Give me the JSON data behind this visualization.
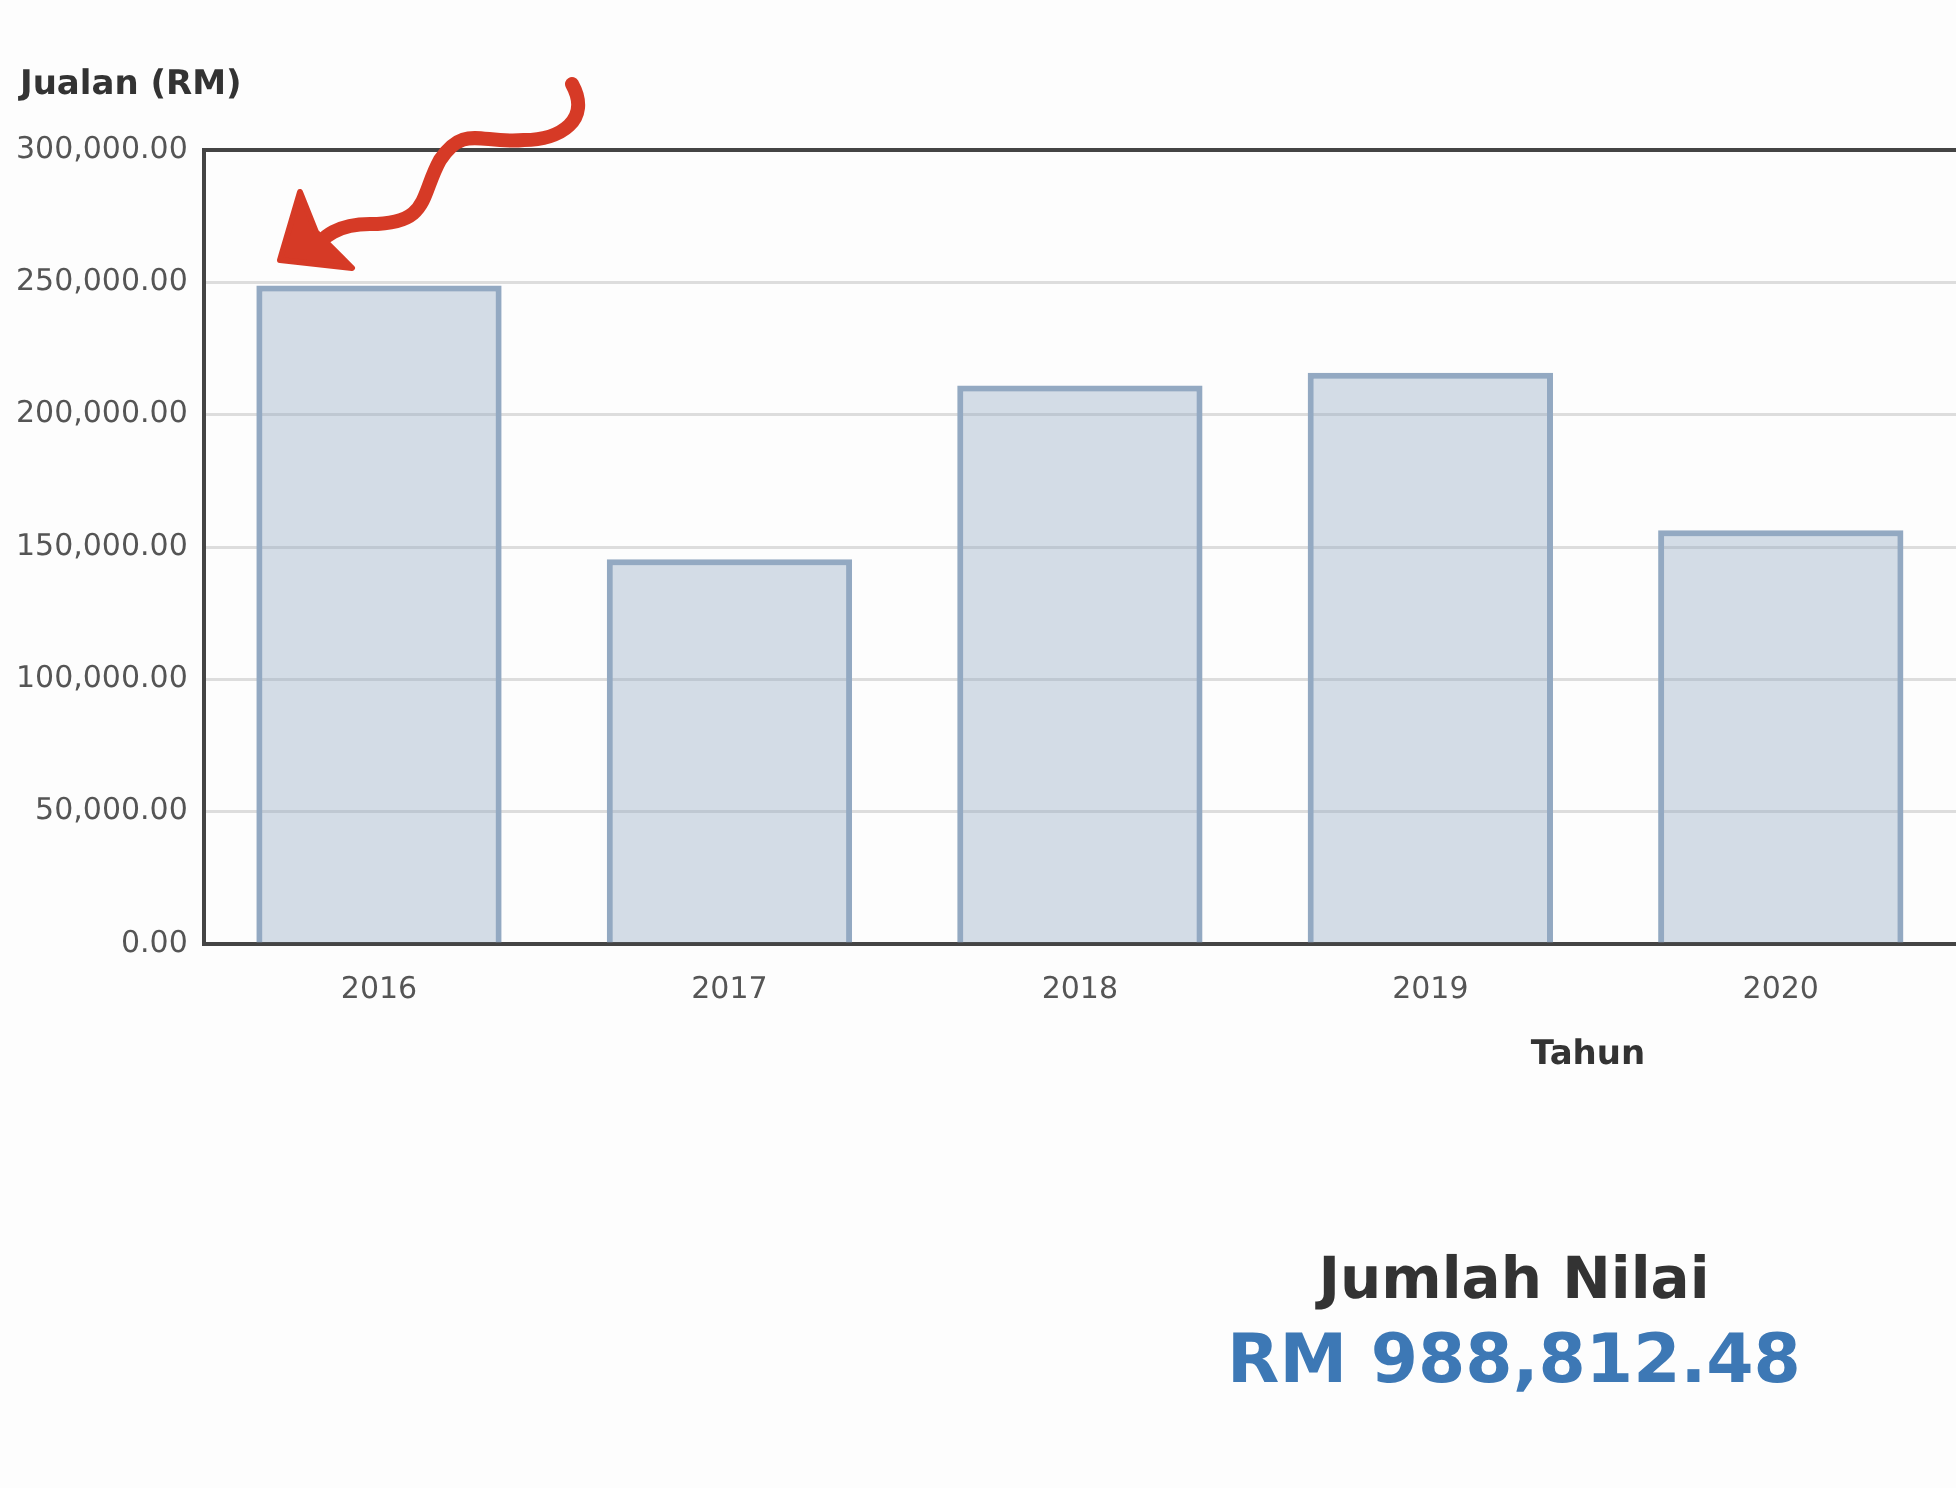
{
  "chart_data": {
    "type": "bar",
    "ylabel": "Jualan (RM)",
    "xlabel": "Tahun",
    "categories": [
      "2016",
      "2017",
      "2018",
      "2019",
      "2020"
    ],
    "values": [
      248800,
      145400,
      211000,
      215800,
      156300
    ],
    "color": "#93a9c2",
    "ylim": [
      0,
      300000
    ],
    "yticks": [
      {
        "value": 0,
        "label": "0.00"
      },
      {
        "value": 50000,
        "label": "50,000.00"
      },
      {
        "value": 100000,
        "label": "100,000.00"
      },
      {
        "value": 150000,
        "label": "150,000.00"
      },
      {
        "value": 200000,
        "label": "200,000.00"
      },
      {
        "value": 250000,
        "label": "250,000.00"
      },
      {
        "value": 300000,
        "label": "300,000.00"
      }
    ],
    "grid": "y",
    "legend": false,
    "annotations": [
      "Jumlah Nilai",
      "RM 988,812.48"
    ]
  }
}
